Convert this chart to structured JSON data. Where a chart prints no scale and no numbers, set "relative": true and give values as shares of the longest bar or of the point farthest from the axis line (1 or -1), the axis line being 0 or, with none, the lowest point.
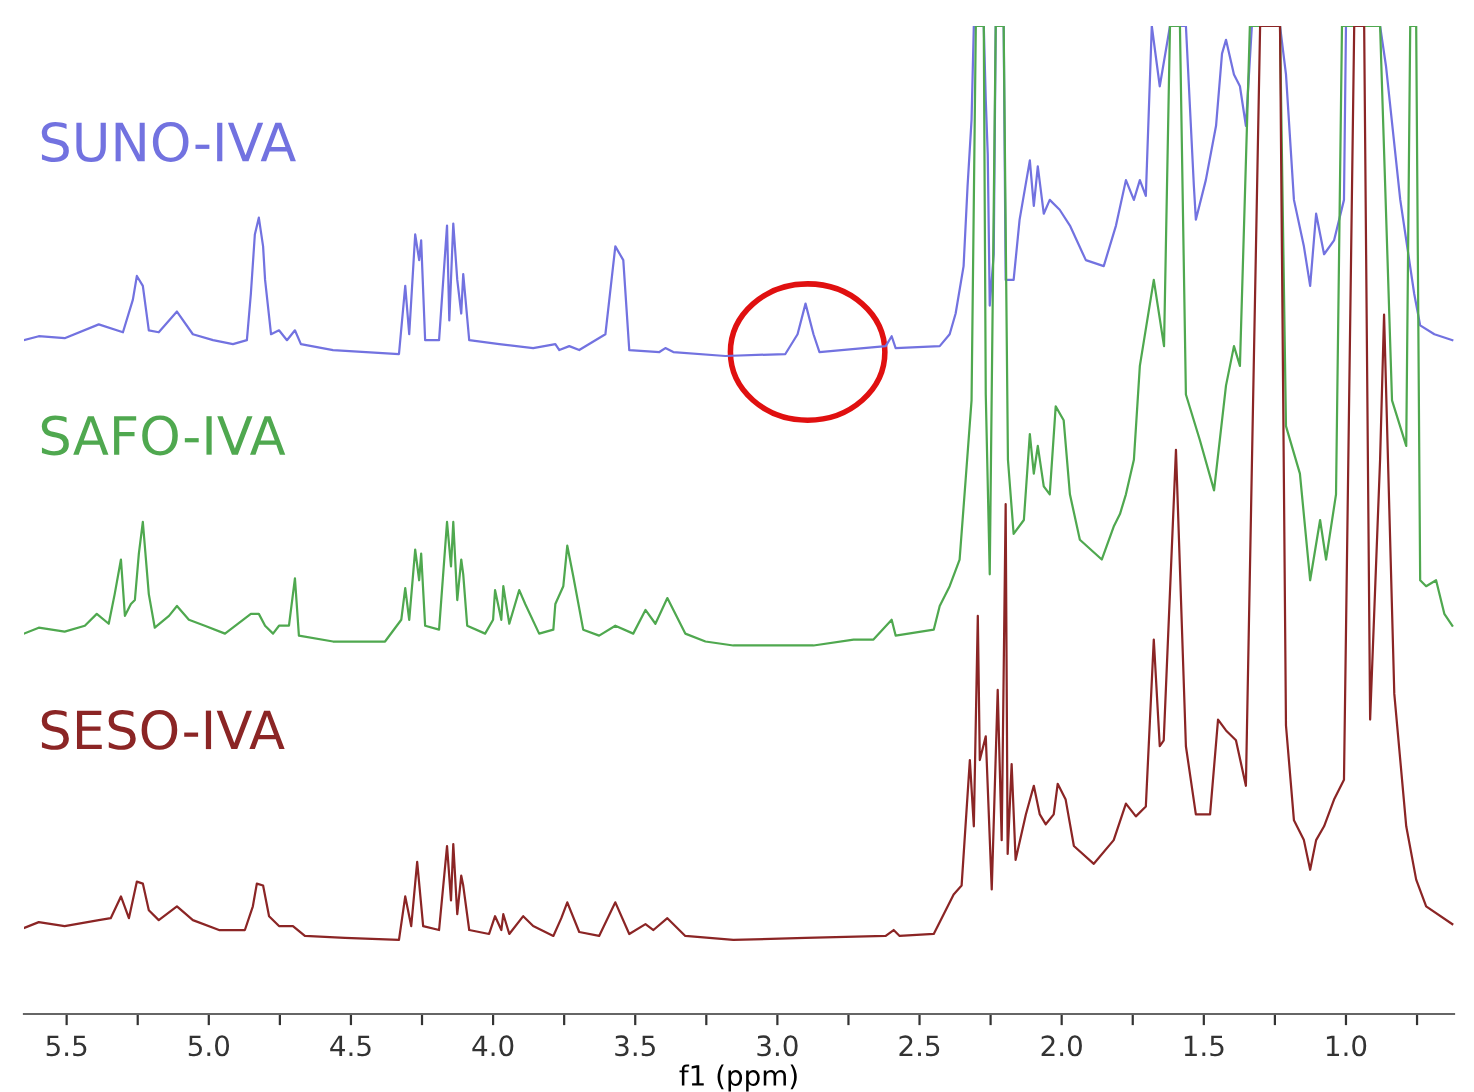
{
  "chart_data": {
    "type": "line",
    "relative": true,
    "xlabel": "f1 (ppm)",
    "xlim": [
      5.65,
      0.62
    ],
    "xticks": [
      5.5,
      {
        "value": 5.25,
        "label": null
      },
      {
        "value": 5.0,
        "label": "5.0"
      },
      {
        "value": 4.75,
        "label": null
      },
      4.5,
      {
        "value": 4.25,
        "label": null
      },
      {
        "value": 4.0,
        "label": "4.0"
      },
      {
        "value": 3.75,
        "label": null
      },
      3.5,
      {
        "value": 3.25,
        "label": null
      },
      {
        "value": 3.0,
        "label": "3.0"
      },
      {
        "value": 2.75,
        "label": null
      },
      2.5,
      {
        "value": 2.25,
        "label": null
      },
      {
        "value": 2.0,
        "label": "2.0"
      },
      {
        "value": 1.75,
        "label": null
      },
      1.5,
      {
        "value": 1.25,
        "label": null
      },
      {
        "value": 1.0,
        "label": "1.0"
      },
      {
        "value": 0.75,
        "label": null
      }
    ],
    "grid": false,
    "legend": false,
    "marker": "none",
    "line_style": "solid",
    "series": [
      {
        "name": "SUNO-IVA",
        "color": "#7272e0",
        "x": [
          5.65,
          5.598,
          5.507,
          5.387,
          5.302,
          5.267,
          5.253,
          5.232,
          5.211,
          5.176,
          5.112,
          5.056,
          4.985,
          4.915,
          4.866,
          4.852,
          4.838,
          4.824,
          4.809,
          4.802,
          4.781,
          4.753,
          4.725,
          4.697,
          4.676,
          4.563,
          4.331,
          4.309,
          4.295,
          4.274,
          4.26,
          4.253,
          4.239,
          4.19,
          4.162,
          4.154,
          4.14,
          4.126,
          4.112,
          4.105,
          4.084,
          3.978,
          3.859,
          3.781,
          3.767,
          3.732,
          3.697,
          3.605,
          3.57,
          3.542,
          3.521,
          3.415,
          3.394,
          3.366,
          3.183,
          2.972,
          2.929,
          2.901,
          2.873,
          2.852,
          2.619,
          2.598,
          2.584,
          2.429,
          2.394,
          2.373,
          2.345,
          2.331,
          2.317,
          2.309,
          2.274,
          2.267,
          2.26,
          2.253,
          2.239,
          2.232,
          2.204,
          2.197,
          2.169,
          2.148,
          2.112,
          2.098,
          2.084,
          2.063,
          2.042,
          2.007,
          1.971,
          1.915,
          1.852,
          1.809,
          1.774,
          1.746,
          1.725,
          1.704,
          1.683,
          1.655,
          1.619,
          1.563,
          1.535,
          1.528,
          1.493,
          1.457,
          1.436,
          1.422,
          1.394,
          1.373,
          1.352,
          1.331,
          1.232,
          1.211,
          1.183,
          1.148,
          1.126,
          1.105,
          1.077,
          1.042,
          1.007,
          1.0,
          0.88,
          0.859,
          0.809,
          0.76,
          0.739,
          0.689,
          0.626
        ],
        "values": [
          0.682,
          0.686,
          0.684,
          0.698,
          0.69,
          0.723,
          0.747,
          0.737,
          0.692,
          0.69,
          0.711,
          0.688,
          0.682,
          0.678,
          0.682,
          0.729,
          0.789,
          0.806,
          0.777,
          0.743,
          0.688,
          0.692,
          0.682,
          0.692,
          0.678,
          0.672,
          0.668,
          0.737,
          0.688,
          0.789,
          0.763,
          0.783,
          0.682,
          0.682,
          0.798,
          0.702,
          0.8,
          0.743,
          0.709,
          0.749,
          0.682,
          0.678,
          0.674,
          0.678,
          0.672,
          0.676,
          0.672,
          0.688,
          0.777,
          0.763,
          0.672,
          0.67,
          0.674,
          0.67,
          0.666,
          0.668,
          0.688,
          0.719,
          0.688,
          0.67,
          0.676,
          0.686,
          0.674,
          0.676,
          0.688,
          0.709,
          0.757,
          0.838,
          0.905,
          1,
          1,
          0.925,
          0.87,
          0.717,
          0.769,
          1,
          1,
          0.743,
          0.743,
          0.804,
          0.864,
          0.818,
          0.858,
          0.81,
          0.824,
          0.814,
          0.798,
          0.763,
          0.757,
          0.798,
          0.844,
          0.824,
          0.844,
          0.828,
          1,
          0.939,
          1,
          1,
          0.838,
          0.804,
          0.844,
          0.899,
          0.972,
          0.986,
          0.951,
          0.939,
          0.899,
          1,
          1,
          0.951,
          0.824,
          0.777,
          0.737,
          0.81,
          0.769,
          0.783,
          0.824,
          1,
          1,
          0.959,
          0.824,
          0.729,
          0.697,
          0.688,
          0.682
        ]
      },
      {
        "name": "SAFO-IVA",
        "color": "#4fa84f",
        "x": [
          5.65,
          5.598,
          5.507,
          5.436,
          5.394,
          5.352,
          5.331,
          5.309,
          5.295,
          5.274,
          5.26,
          5.246,
          5.232,
          5.211,
          5.19,
          5.14,
          5.112,
          5.07,
          5.014,
          4.943,
          4.852,
          4.824,
          4.802,
          4.774,
          4.753,
          4.718,
          4.697,
          4.683,
          4.563,
          4.38,
          4.323,
          4.309,
          4.295,
          4.274,
          4.26,
          4.253,
          4.239,
          4.19,
          4.162,
          4.148,
          4.14,
          4.126,
          4.112,
          4.105,
          4.091,
          4.028,
          4.0,
          3.993,
          3.971,
          3.964,
          3.943,
          3.908,
          3.887,
          3.838,
          3.788,
          3.781,
          3.753,
          3.739,
          3.718,
          3.683,
          3.627,
          3.57,
          3.507,
          3.464,
          3.429,
          3.387,
          3.324,
          3.253,
          3.155,
          2.873,
          2.732,
          2.662,
          2.598,
          2.584,
          2.45,
          2.429,
          2.394,
          2.359,
          2.338,
          2.317,
          2.302,
          2.274,
          2.267,
          2.253,
          2.232,
          2.204,
          2.189,
          2.169,
          2.133,
          2.112,
          2.098,
          2.084,
          2.063,
          2.042,
          2.021,
          1.993,
          1.971,
          1.936,
          1.859,
          1.816,
          1.795,
          1.774,
          1.746,
          1.725,
          1.676,
          1.64,
          1.619,
          1.584,
          1.563,
          1.514,
          1.464,
          1.422,
          1.394,
          1.373,
          1.338,
          1.232,
          1.211,
          1.162,
          1.126,
          1.091,
          1.07,
          1.035,
          1.014,
          0.88,
          0.838,
          0.788,
          0.774,
          0.753,
          0.739,
          0.718,
          0.683,
          0.654,
          0.626
        ],
        "values": [
          0.385,
          0.391,
          0.387,
          0.393,
          0.405,
          0.395,
          0.425,
          0.46,
          0.403,
          0.415,
          0.419,
          0.466,
          0.498,
          0.425,
          0.391,
          0.403,
          0.413,
          0.399,
          0.393,
          0.385,
          0.405,
          0.405,
          0.393,
          0.385,
          0.393,
          0.393,
          0.441,
          0.383,
          0.377,
          0.377,
          0.399,
          0.431,
          0.399,
          0.47,
          0.439,
          0.466,
          0.393,
          0.389,
          0.498,
          0.453,
          0.498,
          0.419,
          0.46,
          0.445,
          0.393,
          0.385,
          0.399,
          0.429,
          0.399,
          0.433,
          0.395,
          0.429,
          0.415,
          0.385,
          0.389,
          0.415,
          0.433,
          0.474,
          0.443,
          0.389,
          0.383,
          0.393,
          0.385,
          0.409,
          0.395,
          0.421,
          0.385,
          0.377,
          0.373,
          0.373,
          0.379,
          0.379,
          0.399,
          0.383,
          0.389,
          0.413,
          0.433,
          0.46,
          0.54,
          0.621,
          1,
          1,
          0.627,
          0.445,
          1,
          1,
          0.561,
          0.486,
          0.5,
          0.587,
          0.547,
          0.575,
          0.534,
          0.526,
          0.615,
          0.601,
          0.526,
          0.48,
          0.46,
          0.494,
          0.506,
          0.526,
          0.561,
          0.656,
          0.743,
          0.676,
          1,
          1,
          0.627,
          0.581,
          0.53,
          0.636,
          0.676,
          0.656,
          1,
          1,
          0.595,
          0.547,
          0.439,
          0.5,
          0.46,
          0.526,
          1,
          1,
          0.621,
          0.575,
          1,
          1,
          0.439,
          0.433,
          0.439,
          0.405,
          0.393
        ]
      },
      {
        "name": "SESO-IVA",
        "color": "#8b2525",
        "x": [
          5.65,
          5.598,
          5.507,
          5.387,
          5.345,
          5.309,
          5.281,
          5.253,
          5.232,
          5.211,
          5.176,
          5.112,
          5.056,
          4.964,
          4.873,
          4.845,
          4.831,
          4.809,
          4.788,
          4.753,
          4.704,
          4.662,
          4.521,
          4.331,
          4.309,
          4.288,
          4.267,
          4.246,
          4.19,
          4.162,
          4.148,
          4.14,
          4.126,
          4.112,
          4.105,
          4.084,
          4.014,
          3.993,
          3.971,
          3.964,
          3.943,
          3.894,
          3.859,
          3.788,
          3.76,
          3.739,
          3.697,
          3.627,
          3.57,
          3.521,
          3.464,
          3.436,
          3.387,
          3.324,
          3.155,
          2.901,
          2.619,
          2.591,
          2.57,
          2.45,
          2.38,
          2.352,
          2.323,
          2.309,
          2.295,
          2.288,
          2.267,
          2.246,
          2.225,
          2.211,
          2.197,
          2.19,
          2.176,
          2.162,
          2.126,
          2.098,
          2.077,
          2.056,
          2.028,
          2.014,
          1.986,
          1.957,
          1.887,
          1.817,
          1.774,
          1.739,
          1.704,
          1.676,
          1.655,
          1.641,
          1.598,
          1.563,
          1.528,
          1.478,
          1.45,
          1.422,
          1.387,
          1.352,
          1.302,
          1.232,
          1.211,
          1.183,
          1.148,
          1.126,
          1.105,
          1.077,
          1.042,
          1.007,
          0.971,
          0.936,
          0.915,
          0.88,
          0.866,
          0.83,
          0.788,
          0.753,
          0.718,
          0.626
        ],
        "values": [
          0.087,
          0.093,
          0.089,
          0.095,
          0.097,
          0.119,
          0.097,
          0.134,
          0.132,
          0.105,
          0.095,
          0.109,
          0.095,
          0.085,
          0.085,
          0.109,
          0.132,
          0.13,
          0.099,
          0.089,
          0.089,
          0.079,
          0.077,
          0.075,
          0.119,
          0.089,
          0.154,
          0.089,
          0.085,
          0.17,
          0.115,
          0.172,
          0.101,
          0.14,
          0.13,
          0.085,
          0.081,
          0.099,
          0.085,
          0.101,
          0.081,
          0.099,
          0.089,
          0.079,
          0.097,
          0.113,
          0.083,
          0.079,
          0.113,
          0.081,
          0.091,
          0.085,
          0.097,
          0.079,
          0.075,
          0.077,
          0.079,
          0.085,
          0.079,
          0.081,
          0.121,
          0.13,
          0.257,
          0.19,
          0.403,
          0.257,
          0.281,
          0.126,
          0.328,
          0.176,
          0.516,
          0.162,
          0.253,
          0.156,
          0.202,
          0.231,
          0.202,
          0.192,
          0.202,
          0.233,
          0.217,
          0.17,
          0.152,
          0.176,
          0.213,
          0.2,
          0.21,
          0.379,
          0.271,
          0.277,
          0.571,
          0.271,
          0.202,
          0.202,
          0.298,
          0.287,
          0.277,
          0.231,
          1,
          1,
          0.292,
          0.196,
          0.176,
          0.146,
          0.176,
          0.19,
          0.217,
          0.237,
          1,
          1,
          0.298,
          0.561,
          0.708,
          0.324,
          0.19,
          0.136,
          0.109,
          0.091
        ]
      }
    ]
  }
}
